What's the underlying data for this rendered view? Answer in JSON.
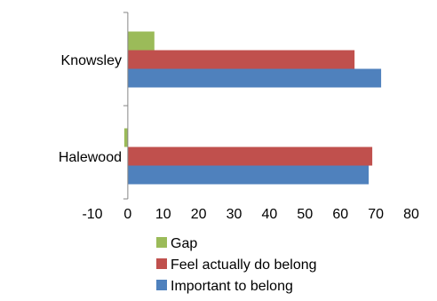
{
  "chart_data": {
    "type": "bar",
    "orientation": "horizontal",
    "categories": [
      "Halewood",
      "Knowsley"
    ],
    "series": [
      {
        "name": "Important to belong",
        "color": "#4F81BD",
        "values": [
          68,
          71.5
        ]
      },
      {
        "name": "Feel actually do belong",
        "color": "#C0504D",
        "values": [
          69,
          64
        ]
      },
      {
        "name": "Gap",
        "color": "#9BBB59",
        "values": [
          -1,
          7.5
        ]
      }
    ],
    "xlim": [
      -10,
      80
    ],
    "xticks": [
      -10,
      0,
      10,
      20,
      30,
      40,
      50,
      60,
      70,
      80
    ],
    "grid": false,
    "legend": {
      "position": "bottom",
      "order": [
        "Gap",
        "Feel actually do belong",
        "Important to belong"
      ]
    }
  }
}
